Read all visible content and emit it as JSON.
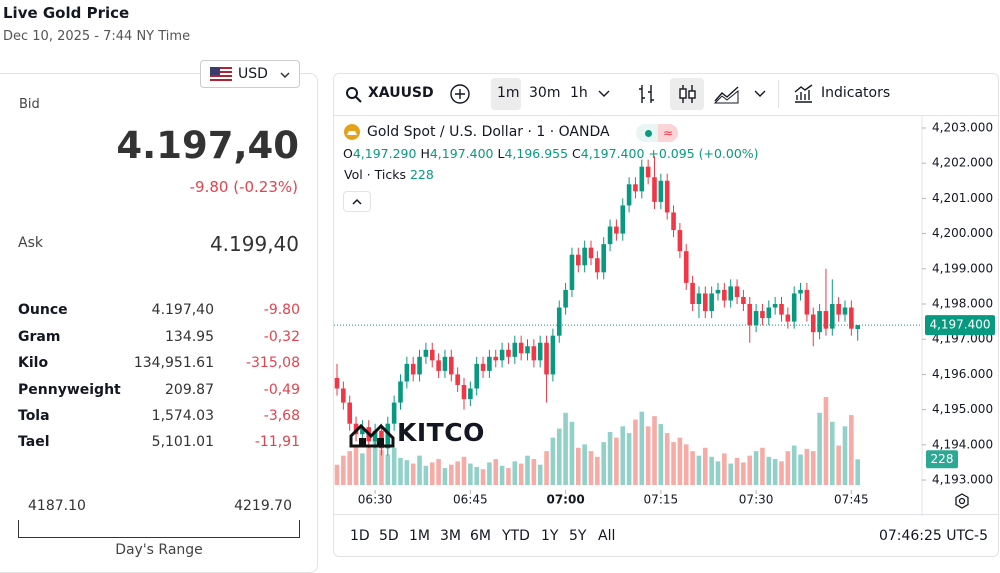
{
  "header": {
    "title": "Live Gold Price",
    "subtitle": "Dec 10, 2025 - 7:44 NY Time",
    "currency": "USD"
  },
  "quote": {
    "bid_label": "Bid",
    "bid": "4.197,40",
    "change": "-9.80 (-0.23%)",
    "ask_label": "Ask",
    "ask": "4.199,40"
  },
  "units": {
    "rows": [
      [
        "Ounce",
        "4.197,40",
        "-9.80"
      ],
      [
        "Gram",
        "134.95",
        "-0,32"
      ],
      [
        "Kilo",
        "134,951.61",
        "-315,08"
      ],
      [
        "Pennyweight",
        "209.87",
        "-0,49"
      ],
      [
        "Tola",
        "1,574.03",
        "-3,68"
      ],
      [
        "Tael",
        "5,101.01",
        "-11,91"
      ]
    ]
  },
  "range": {
    "low": "4187.10",
    "high": "4219.70",
    "label": "Day's Range"
  },
  "toolbar": {
    "symbol": "XAUUSD",
    "intervals": [
      "1m",
      "30m",
      "1h"
    ],
    "indicators": "Indicators"
  },
  "legend": {
    "title": "Gold Spot / U.S. Dollar · 1 · OANDA",
    "ohlc": [
      {
        "key": "O",
        "value": "4,197.290"
      },
      {
        "key": "H",
        "value": "4,197.400"
      },
      {
        "key": "L",
        "value": "4,196.955"
      },
      {
        "key": "C",
        "value": "4,197.400"
      }
    ],
    "change": "+0.095 (+0.00%)",
    "volume_label": "Vol · Ticks"
  },
  "periods": [
    "1D",
    "5D",
    "1M",
    "3M",
    "6M",
    "YTD",
    "1Y",
    "5Y",
    "All"
  ],
  "clock": "07:46:25 UTC-5",
  "watermark": "KITCO",
  "chart_data": {
    "type": "candlestick",
    "categories": [
      null,
      null,
      null,
      null,
      null,
      null,
      "06:30",
      null,
      null,
      null,
      null,
      null,
      null,
      null,
      null,
      null,
      null,
      null,
      null,
      null,
      null,
      "06:45",
      null,
      null,
      null,
      null,
      null,
      null,
      null,
      null,
      null,
      null,
      null,
      null,
      null,
      null,
      "07:00",
      null,
      null,
      null,
      null,
      null,
      null,
      null,
      null,
      null,
      null,
      null,
      null,
      null,
      null,
      "07:15",
      null,
      null,
      null,
      null,
      null,
      null,
      null,
      null,
      null,
      null,
      null,
      null,
      null,
      null,
      "07:30",
      null,
      null,
      null,
      null,
      null,
      null,
      null,
      null,
      null,
      null,
      null,
      null,
      null,
      null,
      "07:45",
      null
    ],
    "open": [
      4195.9,
      4195.6,
      4195.2,
      4194.6,
      4194.3,
      4194.5,
      4194.1,
      4194.4,
      4193.9,
      4194.6,
      4195.2,
      4195.8,
      4196.3,
      4196.0,
      4196.5,
      4196.7,
      4196.4,
      4196.1,
      4196.5,
      4196.0,
      4195.7,
      4195.3,
      4195.6,
      4196.3,
      4196.1,
      4196.5,
      4196.4,
      4196.7,
      4196.5,
      4196.9,
      4196.6,
      4196.8,
      4196.4,
      4196.9,
      4196.0,
      4197.1,
      4197.9,
      4198.4,
      4199.4,
      4199.1,
      4199.6,
      4199.3,
      4198.9,
      4199.7,
      4200.2,
      4200.0,
      4200.8,
      4201.4,
      4201.2,
      4201.9,
      4201.6,
      4200.9,
      4201.5,
      4200.6,
      4200.1,
      4199.5,
      4198.6,
      4198.0,
      4198.3,
      4197.8,
      4198.3,
      4198.4,
      4198.1,
      4198.5,
      4198.2,
      4198.0,
      4197.4,
      4197.8,
      4197.6,
      4197.9,
      4198.0,
      4197.7,
      4197.5,
      4198.3,
      4198.4,
      4197.7,
      4197.2,
      4197.8,
      4197.3,
      4198.0,
      4197.7,
      4197.9,
      4197.29
    ],
    "high": [
      4196.3,
      4195.8,
      4195.4,
      4194.8,
      4194.7,
      4194.7,
      4194.6,
      4194.6,
      4194.8,
      4195.4,
      4196.0,
      4196.5,
      4196.5,
      4196.7,
      4196.9,
      4196.9,
      4196.6,
      4196.7,
      4196.7,
      4196.2,
      4195.9,
      4195.8,
      4196.5,
      4196.5,
      4196.7,
      4196.7,
      4196.9,
      4196.9,
      4197.1,
      4197.1,
      4197.0,
      4197.0,
      4197.1,
      4197.1,
      4197.3,
      4198.1,
      4198.6,
      4199.6,
      4199.6,
      4199.8,
      4199.8,
      4199.5,
      4199.9,
      4200.4,
      4200.4,
      4201.0,
      4201.6,
      4201.6,
      4202.1,
      4202.1,
      4202.2,
      4201.7,
      4201.7,
      4200.8,
      4200.3,
      4199.7,
      4198.8,
      4198.5,
      4198.5,
      4198.5,
      4198.6,
      4198.6,
      4198.7,
      4198.7,
      4198.4,
      4198.2,
      4198.0,
      4198.0,
      4198.1,
      4198.2,
      4198.2,
      4197.9,
      4198.5,
      4198.6,
      4198.6,
      4197.9,
      4198.0,
      4199.0,
      4198.7,
      4198.2,
      4198.1,
      4198.1,
      4197.4
    ],
    "low": [
      4195.4,
      4195.0,
      4194.4,
      4194.1,
      4194.1,
      4193.9,
      4193.9,
      4193.7,
      4193.7,
      4194.4,
      4195.0,
      4195.6,
      4195.8,
      4195.8,
      4196.3,
      4196.2,
      4195.9,
      4195.9,
      4195.8,
      4195.5,
      4195.0,
      4195.1,
      4195.4,
      4195.9,
      4195.9,
      4196.2,
      4196.2,
      4196.3,
      4196.3,
      4196.4,
      4196.4,
      4196.2,
      4196.2,
      4195.2,
      4195.8,
      4196.9,
      4197.7,
      4198.2,
      4198.9,
      4198.9,
      4199.1,
      4198.7,
      4198.7,
      4199.5,
      4199.8,
      4199.8,
      4200.6,
      4201.0,
      4201.0,
      4201.4,
      4200.7,
      4200.7,
      4200.4,
      4199.9,
      4199.3,
      4198.4,
      4197.8,
      4197.6,
      4197.6,
      4197.6,
      4198.1,
      4197.9,
      4197.9,
      4198.0,
      4197.8,
      4196.9,
      4197.2,
      4197.4,
      4197.4,
      4197.7,
      4197.5,
      4197.3,
      4197.3,
      4198.1,
      4197.5,
      4196.8,
      4197.0,
      4197.1,
      4197.1,
      4197.5,
      4197.5,
      4197.1,
      4196.955
    ],
    "close": [
      4195.6,
      4195.2,
      4194.6,
      4194.3,
      4194.5,
      4194.1,
      4194.4,
      4193.9,
      4194.6,
      4195.2,
      4195.8,
      4196.3,
      4196.0,
      4196.5,
      4196.7,
      4196.4,
      4196.1,
      4196.5,
      4196.0,
      4195.7,
      4195.3,
      4195.6,
      4196.3,
      4196.1,
      4196.5,
      4196.4,
      4196.7,
      4196.5,
      4196.9,
      4196.6,
      4196.8,
      4196.4,
      4196.9,
      4196.0,
      4197.1,
      4197.9,
      4198.4,
      4199.4,
      4199.1,
      4199.6,
      4199.3,
      4198.9,
      4199.7,
      4200.2,
      4200.0,
      4200.8,
      4201.4,
      4201.2,
      4201.9,
      4201.6,
      4200.9,
      4201.5,
      4200.6,
      4200.1,
      4199.5,
      4198.6,
      4198.0,
      4198.3,
      4197.8,
      4198.3,
      4198.4,
      4198.1,
      4198.5,
      4198.2,
      4198.0,
      4197.4,
      4197.8,
      4197.6,
      4197.9,
      4198.0,
      4197.7,
      4197.5,
      4198.3,
      4198.4,
      4197.7,
      4197.2,
      4197.8,
      4197.3,
      4198.0,
      4197.7,
      4197.9,
      4197.3,
      4197.4
    ],
    "volume": [
      180,
      260,
      300,
      340,
      280,
      350,
      420,
      310,
      270,
      330,
      240,
      220,
      190,
      260,
      170,
      200,
      230,
      150,
      180,
      210,
      250,
      190,
      160,
      140,
      200,
      230,
      170,
      150,
      210,
      190,
      260,
      230,
      180,
      300,
      420,
      500,
      640,
      560,
      330,
      360,
      300,
      250,
      380,
      470,
      420,
      520,
      460,
      580,
      650,
      520,
      610,
      540,
      460,
      380,
      420,
      360,
      300,
      260,
      330,
      250,
      210,
      280,
      190,
      240,
      200,
      260,
      300,
      330,
      250,
      230,
      210,
      300,
      350,
      270,
      320,
      300,
      640,
      780,
      560,
      350,
      520,
      620,
      228
    ],
    "ylim": [
      4192.7,
      4203.3
    ],
    "yticks": [
      {
        "value": 4193,
        "label": "4,193.000"
      },
      {
        "value": 4194,
        "label": "4,194.000"
      },
      {
        "value": 4195,
        "label": "4,195.000"
      },
      {
        "value": 4196,
        "label": "4,196.000"
      },
      {
        "value": 4197,
        "label": "4,197.000"
      },
      {
        "value": 4198,
        "label": "4,198.000"
      },
      {
        "value": 4199,
        "label": "4,199.000"
      },
      {
        "value": 4200,
        "label": "4,200.000"
      },
      {
        "value": 4201,
        "label": "4,201.000"
      },
      {
        "value": 4202,
        "label": "4,202.000"
      },
      {
        "value": 4203,
        "label": "4,203.000"
      }
    ],
    "last_price": {
      "value": 4197.4,
      "label": "4,197.400"
    },
    "up_color": "#089981",
    "down_color": "#f23645",
    "volume_up_color": "#92d1c9",
    "volume_down_color": "#f7aba6"
  }
}
